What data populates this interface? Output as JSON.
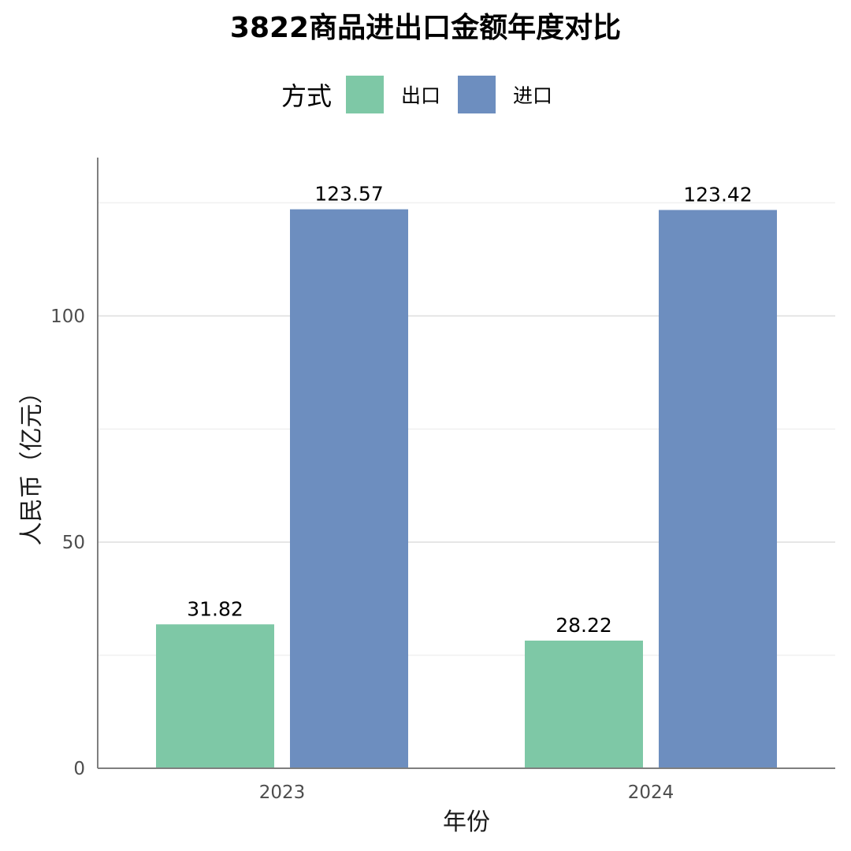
{
  "chart_data": {
    "type": "bar",
    "title": "3822商品进出口金额年度对比",
    "xlabel": "年份",
    "ylabel": "人民币（亿元）",
    "categories": [
      "2023",
      "2024"
    ],
    "series": [
      {
        "name": "出口",
        "values": [
          31.82,
          28.22
        ],
        "color": "#7ec8a6"
      },
      {
        "name": "进口",
        "values": [
          123.57,
          123.42
        ],
        "color": "#6d8ebf"
      }
    ],
    "data_labels": [
      [
        "31.82",
        "28.22"
      ],
      [
        "123.57",
        "123.42"
      ]
    ],
    "legend_title": "方式",
    "legend_position": "top",
    "ylim": [
      0,
      135
    ],
    "yticks": [
      0,
      50,
      100
    ],
    "grid": true
  }
}
